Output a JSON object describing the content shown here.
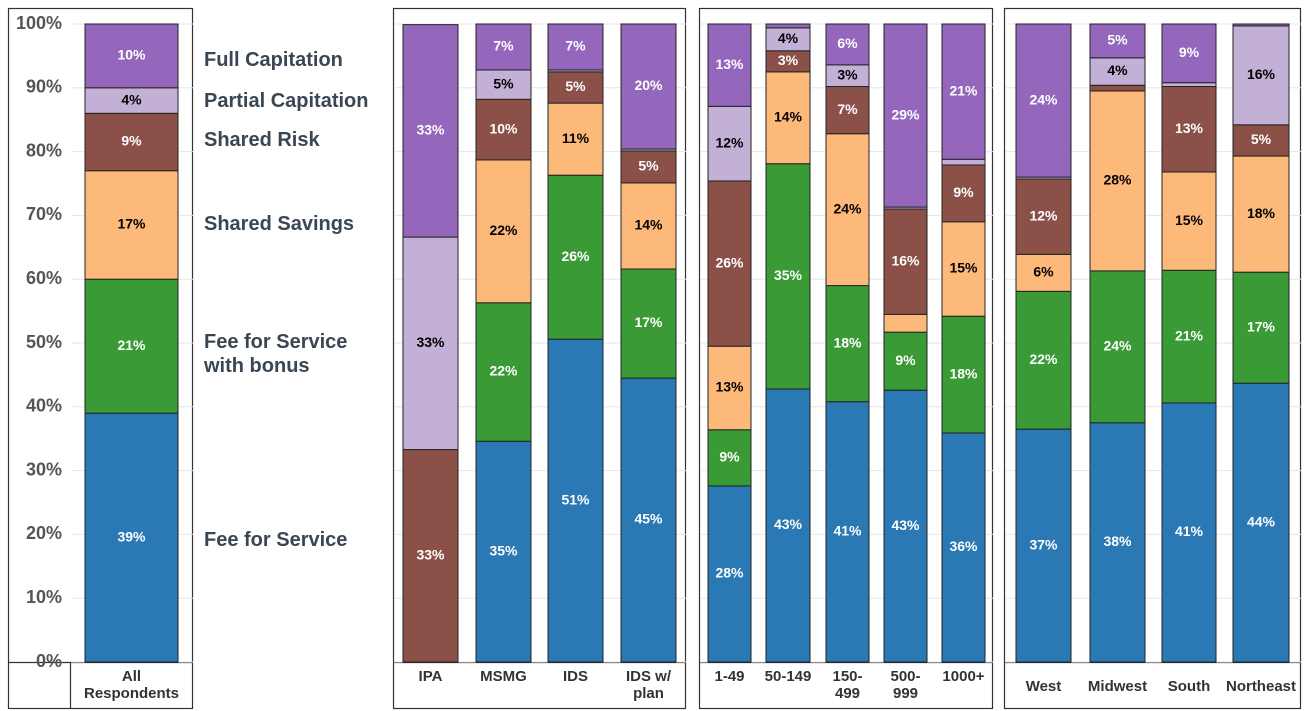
{
  "chart_data": {
    "type": "stacked_bar",
    "ylim": [
      0,
      100
    ],
    "yticks": [
      {
        "value": 0,
        "label": "0%"
      },
      {
        "value": 10,
        "label": "10%"
      },
      {
        "value": 20,
        "label": "20%"
      },
      {
        "value": 30,
        "label": "30%"
      },
      {
        "value": 40,
        "label": "40%"
      },
      {
        "value": 50,
        "label": "50%"
      },
      {
        "value": 60,
        "label": "60%"
      },
      {
        "value": 70,
        "label": "70%"
      },
      {
        "value": 80,
        "label": "80%"
      },
      {
        "value": 90,
        "label": "90%"
      },
      {
        "value": 100,
        "label": "100%"
      }
    ],
    "grid": true,
    "panels": [
      1,
      4,
      5,
      4
    ],
    "categories": [
      "All Respondents",
      "IPA",
      "MSMG",
      "IDS",
      "IDS w/ plan",
      "1-49",
      "50-149",
      "150-499",
      "500-999",
      "1000+",
      "West",
      "Midwest",
      "South",
      "Northeast"
    ],
    "series": [
      {
        "name": "Fee for Service",
        "color": "#2a78b4",
        "label_color": "#ffffff",
        "values": [
          39,
          0,
          34.6,
          50.6,
          44.5,
          27.6,
          42.8,
          40.8,
          42.6,
          35.9,
          36.5,
          37.5,
          40.6,
          43.7
        ],
        "value_labels": [
          "39%",
          null,
          "35%",
          "51%",
          "45%",
          "28%",
          "43%",
          "41%",
          "43%",
          "36%",
          "37%",
          "38%",
          "41%",
          "44%"
        ]
      },
      {
        "name": "Fee for Service with bonus",
        "color": "#3a9a35",
        "label_color": "#ffffff",
        "values": [
          21,
          0,
          21.7,
          25.7,
          17.1,
          8.8,
          35.3,
          18.2,
          9.1,
          18.3,
          21.6,
          23.8,
          20.8,
          17.4
        ],
        "value_labels": [
          "21%",
          null,
          "22%",
          "26%",
          "17%",
          "9%",
          "35%",
          "18%",
          "9%",
          "18%",
          "22%",
          "24%",
          "21%",
          "17%"
        ]
      },
      {
        "name": "Shared Savings",
        "color": "#fdb97a",
        "label_color": "#000000",
        "values": [
          17,
          0,
          22.4,
          11.3,
          13.5,
          13.1,
          14.4,
          23.8,
          2.8,
          14.8,
          5.8,
          28.2,
          15.4,
          18.2
        ],
        "value_labels": [
          "17%",
          null,
          "22%",
          "11%",
          "14%",
          "13%",
          "14%",
          "24%",
          null,
          "15%",
          "6%",
          "28%",
          "15%",
          "18%"
        ]
      },
      {
        "name": "Shared Risk",
        "color": "#8b5149",
        "label_color": "#ffffff",
        "values": [
          9,
          33.3,
          9.5,
          4.9,
          5.0,
          25.9,
          3.3,
          7.4,
          16.5,
          8.9,
          11.8,
          0.9,
          13.4,
          4.9
        ],
        "value_labels": [
          "9%",
          "33%",
          "10%",
          "5%",
          "5%",
          "26%",
          "3%",
          "7%",
          "16%",
          "9%",
          "12%",
          null,
          "13%",
          "5%"
        ]
      },
      {
        "name": "Partial Capitation",
        "color": "#c3b0d6",
        "label_color": "#000000",
        "values": [
          4,
          33.3,
          4.6,
          0.3,
          0.3,
          11.7,
          3.6,
          3.4,
          0.3,
          0.9,
          0.3,
          4.3,
          0.6,
          15.5
        ],
        "value_labels": [
          "4%",
          "33%",
          "5%",
          null,
          null,
          "12%",
          "4%",
          "3%",
          null,
          null,
          null,
          "4%",
          null,
          "16%"
        ]
      },
      {
        "name": "Full Capitation",
        "color": "#9467bd",
        "label_color": "#ffffff",
        "values": [
          10,
          33.3,
          7.2,
          7.2,
          19.6,
          12.9,
          0.6,
          6.4,
          28.7,
          21.2,
          24.0,
          5.3,
          9.2,
          0.3
        ],
        "value_labels": [
          "10%",
          "33%",
          "7%",
          "7%",
          "20%",
          "13%",
          null,
          "6%",
          "29%",
          "21%",
          "24%",
          "5%",
          "9%",
          null
        ]
      }
    ]
  }
}
